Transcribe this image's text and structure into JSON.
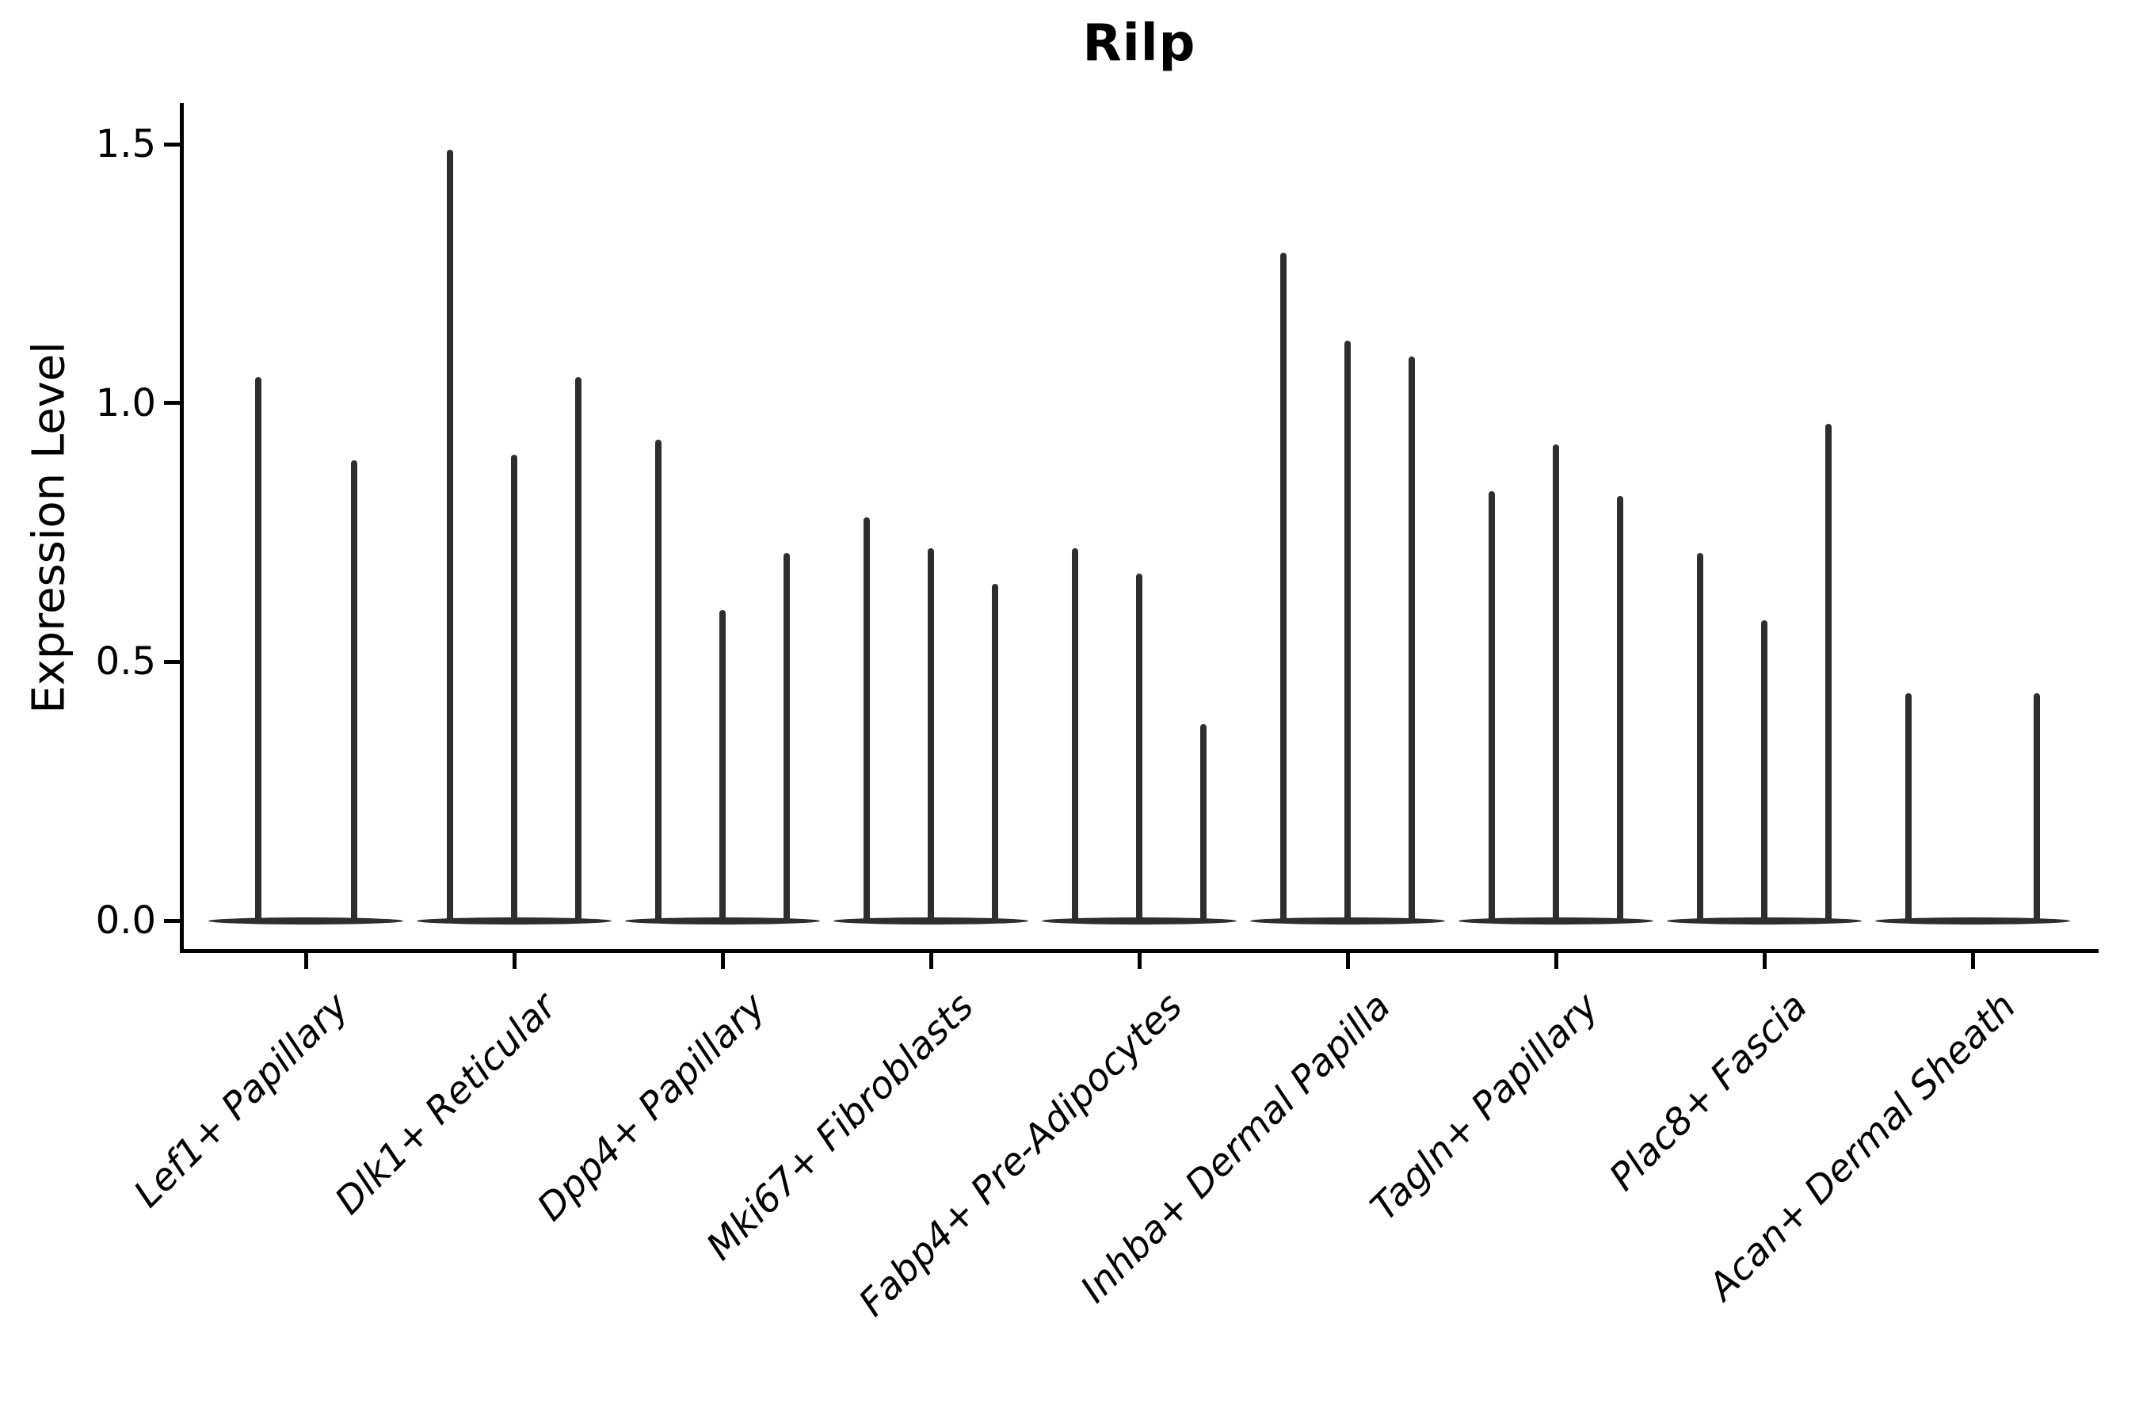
{
  "figure": {
    "title": "Rilp",
    "ylabel": "Expression Level"
  },
  "chart_data": {
    "type": "violin",
    "title": "Rilp",
    "xlabel": "",
    "ylabel": "Expression Level",
    "ylim": [
      -0.06,
      1.58
    ],
    "grid": false,
    "legend": null,
    "yticks": [
      {
        "value": 0.0,
        "label": "0.0"
      },
      {
        "value": 0.5,
        "label": "0.5"
      },
      {
        "value": 1.0,
        "label": "1.0"
      },
      {
        "value": 1.5,
        "label": "1.5"
      }
    ],
    "note": "Each category shows very thin violins collapsed at 0 with narrow spikes; spike value = top of each violin tail (max expression).",
    "violin_color": "#2e2e2e",
    "axis_color": "#000000",
    "text_color": "#000000",
    "categories": [
      {
        "label": "Lef1+ Papillary",
        "slots": 2,
        "spikes": [
          {
            "slot": 0,
            "value": 1.05
          },
          {
            "slot": 1,
            "value": 0.89
          }
        ]
      },
      {
        "label": "Dlk1+ Reticular",
        "slots": 3,
        "spikes": [
          {
            "slot": 0,
            "value": 1.49
          },
          {
            "slot": 1,
            "value": 0.9
          },
          {
            "slot": 2,
            "value": 1.05
          }
        ]
      },
      {
        "label": "Dpp4+ Papillary",
        "slots": 3,
        "spikes": [
          {
            "slot": 0,
            "value": 0.93
          },
          {
            "slot": 1,
            "value": 0.6
          },
          {
            "slot": 2,
            "value": 0.71
          }
        ]
      },
      {
        "label": "Mki67+ Fibroblasts",
        "slots": 3,
        "spikes": [
          {
            "slot": 0,
            "value": 0.78
          },
          {
            "slot": 1,
            "value": 0.72
          },
          {
            "slot": 2,
            "value": 0.65
          }
        ]
      },
      {
        "label": "Fabp4+ Pre-Adipocytes",
        "slots": 3,
        "spikes": [
          {
            "slot": 0,
            "value": 0.72
          },
          {
            "slot": 1,
            "value": 0.67
          },
          {
            "slot": 2,
            "value": 0.38
          }
        ]
      },
      {
        "label": "Inhba+ Dermal Papilla",
        "slots": 3,
        "spikes": [
          {
            "slot": 0,
            "value": 1.29
          },
          {
            "slot": 1,
            "value": 1.12
          },
          {
            "slot": 2,
            "value": 1.09
          }
        ]
      },
      {
        "label": "Tagln+ Papillary",
        "slots": 3,
        "spikes": [
          {
            "slot": 0,
            "value": 0.83
          },
          {
            "slot": 1,
            "value": 0.92
          },
          {
            "slot": 2,
            "value": 0.82
          }
        ]
      },
      {
        "label": "Plac8+ Fascia",
        "slots": 3,
        "spikes": [
          {
            "slot": 0,
            "value": 0.71
          },
          {
            "slot": 1,
            "value": 0.58
          },
          {
            "slot": 2,
            "value": 0.96
          }
        ]
      },
      {
        "label": "Acan+ Dermal Sheath",
        "slots": 3,
        "spikes": [
          {
            "slot": 0,
            "value": 0.44
          },
          {
            "slot": 2,
            "value": 0.44
          }
        ]
      }
    ]
  }
}
